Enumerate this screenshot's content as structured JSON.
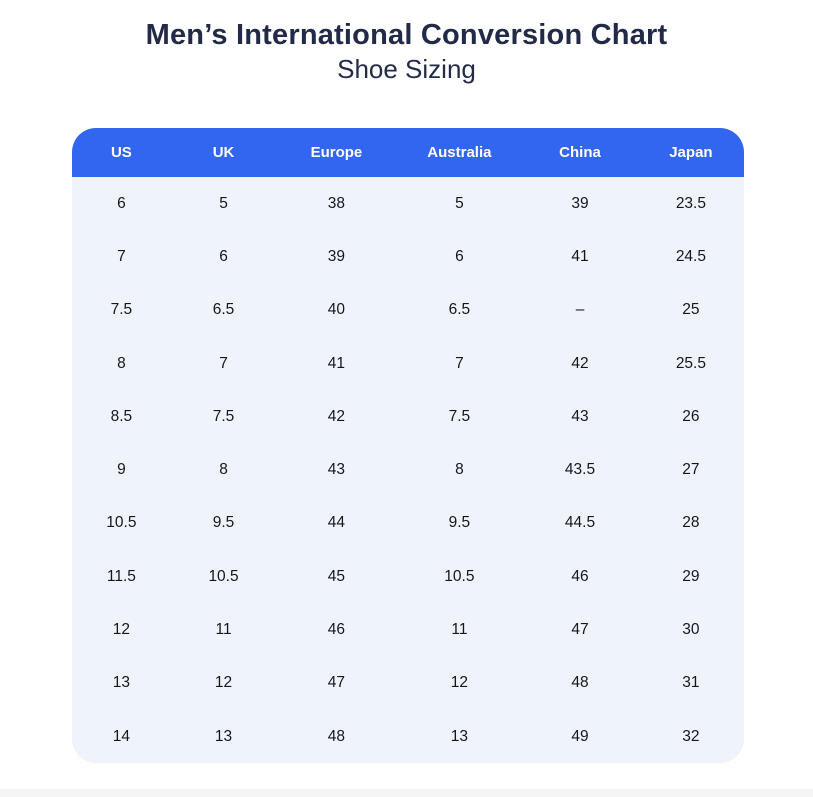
{
  "page": {
    "title": "Men’s International Conversion Chart",
    "subtitle": "Shoe Sizing"
  },
  "chart_data": {
    "type": "table",
    "title": "Men’s International Conversion Chart",
    "subtitle": "Shoe Sizing",
    "columns": [
      "US",
      "UK",
      "Europe",
      "Australia",
      "China",
      "Japan"
    ],
    "rows": [
      [
        "6",
        "5",
        "38",
        "5",
        "39",
        "23.5"
      ],
      [
        "7",
        "6",
        "39",
        "6",
        "41",
        "24.5"
      ],
      [
        "7.5",
        "6.5",
        "40",
        "6.5",
        "–",
        "25"
      ],
      [
        "8",
        "7",
        "41",
        "7",
        "42",
        "25.5"
      ],
      [
        "8.5",
        "7.5",
        "42",
        "7.5",
        "43",
        "26"
      ],
      [
        "9",
        "8",
        "43",
        "8",
        "43.5",
        "27"
      ],
      [
        "10.5",
        "9.5",
        "44",
        "9.5",
        "44.5",
        "28"
      ],
      [
        "11.5",
        "10.5",
        "45",
        "10.5",
        "46",
        "29"
      ],
      [
        "12",
        "11",
        "46",
        "11",
        "47",
        "30"
      ],
      [
        "13",
        "12",
        "47",
        "12",
        "48",
        "31"
      ],
      [
        "14",
        "13",
        "48",
        "13",
        "49",
        "32"
      ]
    ],
    "layout_hints": {
      "header_position": "top",
      "grid": false,
      "rounded_corners": true
    }
  },
  "colors": {
    "header_bg": "#3366F0",
    "header_text": "#FFFFFF",
    "body_bg": "#EFF4FC",
    "cell_text": "#14161F",
    "title_text": "#222A47",
    "page_bg": "#FFFFFF",
    "footer_strip": "#F5F5F5"
  }
}
